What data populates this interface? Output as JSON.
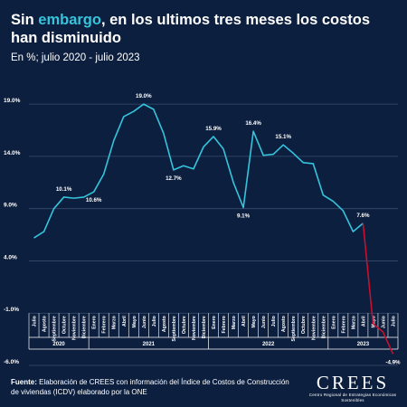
{
  "header": {
    "title_pre": "Sin ",
    "title_accent": "embargo",
    "title_post": ", en los ultimos tres meses los costos han disminuido",
    "subtitle": "En %; julio 2020 - julio 2023"
  },
  "footer": {
    "source_label": "Fuente:",
    "source_text": "Elaboración de CREES con información del Índice de Costos de Construcción de viviendas  (ICDV) elaborado por la ONE"
  },
  "logo": {
    "word": "CREES",
    "subtitle": "Centro Regional de Estrategias Económicas Sostenibles"
  },
  "colors": {
    "background": "#0c1f3f",
    "line": "#35c4dc",
    "highlight": "#c8102e",
    "accent": "#35c4dc",
    "grid": "#3a4d6e"
  },
  "chart_data": {
    "type": "line",
    "ylim": [
      -6,
      21
    ],
    "yticks": [
      {
        "value": 19,
        "label": "19.0%"
      },
      {
        "value": 14,
        "label": "14.0%"
      },
      {
        "value": 9,
        "label": "9.0%"
      },
      {
        "value": 4,
        "label": "4.0%"
      },
      {
        "value": -1,
        "label": "-1.0%"
      },
      {
        "value": -6,
        "label": "-6.0%"
      }
    ],
    "categories": [
      "Julio",
      "Agosto",
      "Septiembre",
      "Octubre",
      "Noviembre",
      "Diciembre",
      "Enero",
      "Febrero",
      "Marzo",
      "Abril",
      "Mayo",
      "Junio",
      "Julio",
      "Agosto",
      "Septiembre",
      "Octubre",
      "Noviembre",
      "Diciembre",
      "Enero",
      "Febrero",
      "Marzo",
      "Abril",
      "Mayo",
      "Junio",
      "Julio",
      "Agosto",
      "Septiembre",
      "Octubre",
      "Noviembre",
      "Diciembre",
      "Enero",
      "Febrero",
      "Marzo",
      "Abril",
      "Mayo",
      "Junio",
      "Julio"
    ],
    "years": [
      {
        "label": "2020",
        "start": 0,
        "end": 5
      },
      {
        "label": "2021",
        "start": 6,
        "end": 17
      },
      {
        "label": "2022",
        "start": 18,
        "end": 29
      },
      {
        "label": "2023",
        "start": 30,
        "end": 36
      }
    ],
    "series": [
      {
        "color": "#35c4dc",
        "values": [
          6.2,
          6.8,
          9.0,
          10.1,
          10.0,
          10.1,
          10.6,
          12.3,
          15.5,
          17.8,
          18.3,
          19.0,
          18.5,
          16.2,
          12.7,
          13.1,
          12.8,
          14.9,
          15.9,
          14.7,
          11.5,
          9.1,
          16.4,
          14.1,
          14.2,
          15.1,
          14.3,
          13.4,
          13.3,
          10.3,
          9.7,
          8.8,
          6.8,
          7.6,
          null,
          null,
          null
        ]
      },
      {
        "color": "#c8102e",
        "values": [
          null,
          null,
          null,
          null,
          null,
          null,
          null,
          null,
          null,
          null,
          null,
          null,
          null,
          null,
          null,
          null,
          null,
          null,
          null,
          null,
          null,
          null,
          null,
          null,
          null,
          null,
          null,
          null,
          null,
          null,
          null,
          null,
          null,
          7.6,
          -2.0,
          -2.8,
          -4.9
        ]
      }
    ],
    "data_labels": [
      {
        "index": 3,
        "text": "10.1%",
        "pos": "above"
      },
      {
        "index": 6,
        "text": "10.6%",
        "pos": "below"
      },
      {
        "index": 11,
        "text": "19.0%",
        "pos": "above"
      },
      {
        "index": 14,
        "text": "12.7%",
        "pos": "below"
      },
      {
        "index": 18,
        "text": "15.9%",
        "pos": "above"
      },
      {
        "index": 21,
        "text": "9.1%",
        "pos": "below"
      },
      {
        "index": 22,
        "text": "16.4%",
        "pos": "above"
      },
      {
        "index": 25,
        "text": "15.1%",
        "pos": "above"
      },
      {
        "index": 33,
        "text": "7.6%",
        "pos": "above"
      },
      {
        "index": 36,
        "text": "-4.9%",
        "pos": "below"
      }
    ]
  }
}
